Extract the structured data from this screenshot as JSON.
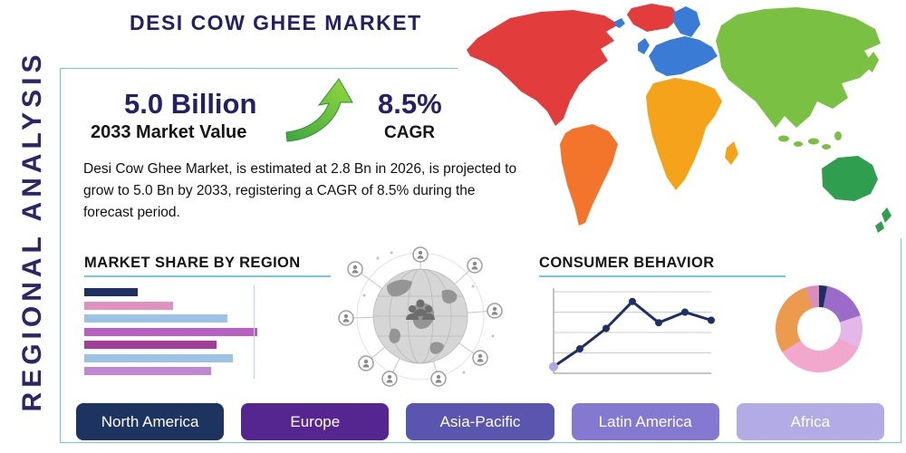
{
  "page": {
    "vertical_label": "REGIONAL ANALYSIS",
    "title": "DESI COW GHEE MARKET"
  },
  "stats": {
    "market_value": "5.0 Billion",
    "market_value_label": "2033 Market Value",
    "cagr_value": "8.5%",
    "cagr_label": "CAGR",
    "heading_color": "#232064",
    "arrow_color_dark": "#3da53f",
    "arrow_color_light": "#96d93c"
  },
  "description": "Desi Cow Ghee Market, is estimated at 2.8 Bn in 2026, is projected to grow to 5.0 Bn by 2033, registering a CAGR of 8.5% during the forecast period.",
  "sections": {
    "market_share_title": "MARKET SHARE BY REGION",
    "consumer_behavior_title": "CONSUMER BEHAVIOR"
  },
  "icons": {
    "growth_arrow": "trending-up-arrow-icon",
    "globe_network": "globe-network-icon"
  },
  "region_buttons": [
    {
      "label": "North America",
      "color": "#1d3461"
    },
    {
      "label": "Europe",
      "color": "#55268f"
    },
    {
      "label": "Asia-Pacific",
      "color": "#5a55ae"
    },
    {
      "label": "Latin America",
      "color": "#8478d0"
    },
    {
      "label": "Africa",
      "color": "#b2abe6"
    }
  ],
  "map": {
    "regions": [
      {
        "name": "north-america",
        "color": "#e23c3c"
      },
      {
        "name": "greenland",
        "color": "#e23c3c"
      },
      {
        "name": "south-america",
        "color": "#f3752b"
      },
      {
        "name": "europe",
        "color": "#3a7bd5"
      },
      {
        "name": "africa",
        "color": "#f5a31a"
      },
      {
        "name": "asia",
        "color": "#7ac143"
      },
      {
        "name": "oceania",
        "color": "#2f9e4f"
      }
    ]
  },
  "chart_data": [
    {
      "type": "bar",
      "title": "Market Share by Region",
      "orientation": "horizontal",
      "labels_visible": false,
      "values": [
        30,
        50,
        81,
        98,
        75,
        84,
        72
      ],
      "colors": [
        "#1d2f63",
        "#e091c0",
        "#9cc3e5",
        "#b75fc2",
        "#a23e97",
        "#9cc3e5",
        "#c287d4"
      ],
      "xlim": [
        0,
        100
      ],
      "grid": true
    },
    {
      "type": "line",
      "title": "Consumer Behavior",
      "labels_visible": false,
      "x": [
        1,
        2,
        3,
        4,
        5,
        6,
        7
      ],
      "values": [
        0.8,
        3,
        5.5,
        8.8,
        6.2,
        7.5,
        6.5
      ],
      "ylim": [
        0,
        10
      ],
      "line_color": "#1d2f63",
      "first_marker_color": "#b3a6e8",
      "grid": true
    },
    {
      "type": "pie",
      "title": "Regional distribution",
      "donut": true,
      "labels_visible": false,
      "slices": [
        {
          "value": 3,
          "color": "#1d2f63"
        },
        {
          "value": 17,
          "color": "#9a6bc9"
        },
        {
          "value": 12,
          "color": "#e3b7e8"
        },
        {
          "value": 34,
          "color": "#f2a7cd"
        },
        {
          "value": 29,
          "color": "#eb9a4e"
        },
        {
          "value": 5,
          "color": "#d98ebc"
        }
      ]
    }
  ]
}
